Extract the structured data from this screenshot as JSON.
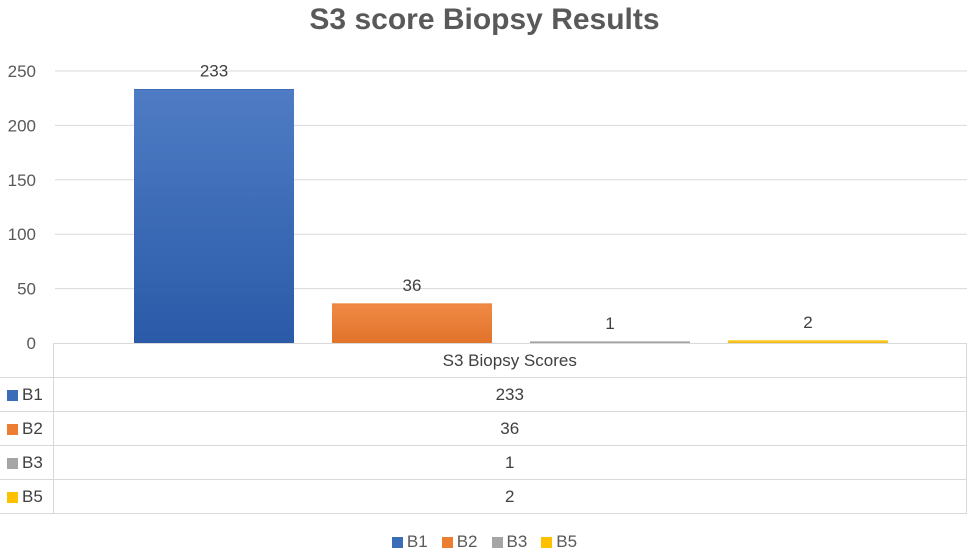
{
  "chart_data": {
    "type": "bar",
    "title": "S3 score Biopsy Results",
    "category_label": "S3 Biopsy Scores",
    "ylim": [
      0,
      250
    ],
    "yticks": [
      0,
      50,
      100,
      150,
      200,
      250
    ],
    "grid": true,
    "legend_position": "bottom",
    "series": [
      {
        "name": "B1",
        "value": 233,
        "color": "#3b6cb7"
      },
      {
        "name": "B2",
        "value": 36,
        "color": "#ed7d31"
      },
      {
        "name": "B3",
        "value": 1,
        "color": "#a5a5a5"
      },
      {
        "name": "B5",
        "value": 2,
        "color": "#ffc000"
      }
    ]
  }
}
